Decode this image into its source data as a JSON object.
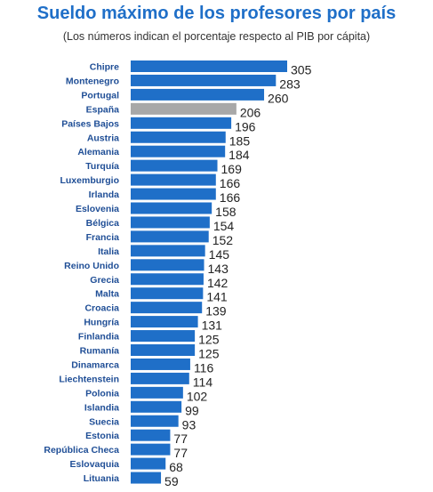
{
  "header": {
    "title": "Sueldo máximo de los profesores por país",
    "subtitle": "(Los números indican el porcentaje respecto al PIB por cápita)"
  },
  "chart_data": {
    "type": "bar",
    "orientation": "horizontal",
    "categories": [
      "Chipre",
      "Montenegro",
      "Portugal",
      "España",
      "Países Bajos",
      "Austria",
      "Alemania",
      "Turquía",
      "Luxemburgio",
      "Irlanda",
      "Eslovenia",
      "Bélgica",
      "Francia",
      "Italia",
      "Reino Unido",
      "Grecia",
      "Malta",
      "Croacia",
      "Hungría",
      "Finlandia",
      "Rumanía",
      "Dinamarca",
      "Liechtenstein",
      "Polonia",
      "Islandia",
      "Suecia",
      "Estonia",
      "República Checa",
      "Eslovaquia",
      "Lituania"
    ],
    "values": [
      305,
      283,
      260,
      206,
      196,
      185,
      184,
      169,
      166,
      166,
      158,
      154,
      152,
      145,
      143,
      142,
      141,
      139,
      131,
      125,
      125,
      116,
      114,
      102,
      99,
      93,
      77,
      77,
      68,
      59
    ],
    "value_labels": [
      "305",
      "283",
      "260",
      "206",
      "196",
      "185",
      "184",
      "169",
      "166",
      "166",
      "158",
      "154",
      "152",
      "145",
      "143",
      "142",
      "141",
      "139",
      "131",
      "125",
      "125",
      "116",
      "114",
      "102",
      "99",
      "93",
      "77",
      "77",
      "68",
      "59"
    ],
    "highlight_category": "España",
    "colors": {
      "bar": "#1f6fc8",
      "highlight": "#a8a8a8",
      "category_label": "#1f4e96",
      "value_label": "#222222"
    },
    "xlim": [
      0,
      305
    ],
    "grid": false,
    "legend": "none"
  }
}
